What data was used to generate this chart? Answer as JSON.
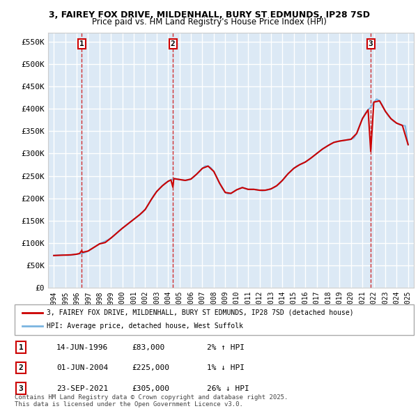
{
  "title_line1": "3, FAIREY FOX DRIVE, MILDENHALL, BURY ST EDMUNDS, IP28 7SD",
  "title_line2": "Price paid vs. HM Land Registry's House Price Index (HPI)",
  "ylabel": "",
  "background_color": "#dce9f5",
  "plot_bg_color": "#dce9f5",
  "grid_color": "#ffffff",
  "hpi_color": "#7ab4e0",
  "price_color": "#cc0000",
  "ytick_labels": [
    "£0",
    "£50K",
    "£100K",
    "£150K",
    "£200K",
    "£250K",
    "£300K",
    "£350K",
    "£400K",
    "£450K",
    "£500K",
    "£550K"
  ],
  "ytick_values": [
    0,
    50000,
    100000,
    150000,
    200000,
    250000,
    300000,
    350000,
    400000,
    450000,
    500000,
    550000
  ],
  "ylim": [
    0,
    570000
  ],
  "xlim_start": 1993.5,
  "xlim_end": 2025.5,
  "xtick_years": [
    1994,
    1995,
    1996,
    1997,
    1998,
    1999,
    2000,
    2001,
    2002,
    2003,
    2004,
    2005,
    2006,
    2007,
    2008,
    2009,
    2010,
    2011,
    2012,
    2013,
    2014,
    2015,
    2016,
    2017,
    2018,
    2019,
    2020,
    2021,
    2022,
    2023,
    2024,
    2025
  ],
  "sale_dates": [
    1996.45,
    2004.42,
    2021.73
  ],
  "sale_prices": [
    83000,
    225000,
    305000
  ],
  "sale_labels": [
    "1",
    "2",
    "3"
  ],
  "legend_line1": "3, FAIREY FOX DRIVE, MILDENHALL, BURY ST EDMUNDS, IP28 7SD (detached house)",
  "legend_line2": "HPI: Average price, detached house, West Suffolk",
  "table_rows": [
    {
      "num": "1",
      "date": "14-JUN-1996",
      "price": "£83,000",
      "hpi": "2% ↑ HPI"
    },
    {
      "num": "2",
      "date": "01-JUN-2004",
      "price": "£225,000",
      "hpi": "1% ↓ HPI"
    },
    {
      "num": "3",
      "date": "23-SEP-2021",
      "price": "£305,000",
      "hpi": "26% ↓ HPI"
    }
  ],
  "footnote": "Contains HM Land Registry data © Crown copyright and database right 2025.\nThis data is licensed under the Open Government Licence v3.0.",
  "hpi_data_x": [
    1994,
    1994.25,
    1994.5,
    1994.75,
    1995,
    1995.25,
    1995.5,
    1995.75,
    1996,
    1996.25,
    1996.5,
    1996.75,
    1997,
    1997.25,
    1997.5,
    1997.75,
    1998,
    1998.25,
    1998.5,
    1998.75,
    1999,
    1999.25,
    1999.5,
    1999.75,
    2000,
    2000.25,
    2000.5,
    2000.75,
    2001,
    2001.25,
    2001.5,
    2001.75,
    2002,
    2002.25,
    2002.5,
    2002.75,
    2003,
    2003.25,
    2003.5,
    2003.75,
    2004,
    2004.25,
    2004.5,
    2004.75,
    2005,
    2005.25,
    2005.5,
    2005.75,
    2006,
    2006.25,
    2006.5,
    2006.75,
    2007,
    2007.25,
    2007.5,
    2007.75,
    2008,
    2008.25,
    2008.5,
    2008.75,
    2009,
    2009.25,
    2009.5,
    2009.75,
    2010,
    2010.25,
    2010.5,
    2010.75,
    2011,
    2011.25,
    2011.5,
    2011.75,
    2012,
    2012.25,
    2012.5,
    2012.75,
    2013,
    2013.25,
    2013.5,
    2013.75,
    2014,
    2014.25,
    2014.5,
    2014.75,
    2015,
    2015.25,
    2015.5,
    2015.75,
    2016,
    2016.25,
    2016.5,
    2016.75,
    2017,
    2017.25,
    2017.5,
    2017.75,
    2018,
    2018.25,
    2018.5,
    2018.75,
    2019,
    2019.25,
    2019.5,
    2019.75,
    2020,
    2020.25,
    2020.5,
    2020.75,
    2021,
    2021.25,
    2021.5,
    2021.75,
    2022,
    2022.25,
    2022.5,
    2022.75,
    2023,
    2023.25,
    2023.5,
    2023.75,
    2024,
    2024.25,
    2024.5,
    2024.75,
    2025
  ],
  "hpi_data_y": [
    72000,
    72500,
    73000,
    73500,
    73000,
    72500,
    73000,
    74000,
    75000,
    76000,
    77000,
    79000,
    82000,
    86000,
    90000,
    94000,
    98000,
    101000,
    104000,
    107000,
    111000,
    116000,
    122000,
    128000,
    133000,
    138000,
    143000,
    148000,
    153000,
    158000,
    163000,
    168000,
    175000,
    185000,
    196000,
    207000,
    215000,
    222000,
    228000,
    234000,
    238000,
    241000,
    244000,
    243000,
    242000,
    241000,
    240000,
    241000,
    243000,
    248000,
    254000,
    260000,
    267000,
    272000,
    272000,
    268000,
    260000,
    248000,
    234000,
    222000,
    213000,
    210000,
    211000,
    215000,
    219000,
    222000,
    224000,
    222000,
    220000,
    220000,
    220000,
    219000,
    218000,
    217000,
    218000,
    219000,
    221000,
    224000,
    228000,
    233000,
    240000,
    248000,
    255000,
    261000,
    267000,
    272000,
    275000,
    278000,
    281000,
    285000,
    290000,
    295000,
    300000,
    305000,
    310000,
    314000,
    318000,
    322000,
    325000,
    327000,
    328000,
    329000,
    330000,
    331000,
    332000,
    335000,
    345000,
    362000,
    378000,
    390000,
    398000,
    404000,
    415000,
    422000,
    418000,
    408000,
    395000,
    385000,
    378000,
    372000,
    368000,
    365000,
    363000,
    362000,
    320000
  ],
  "price_line_x": [
    1994,
    1994.5,
    1995,
    1995.5,
    1996,
    1996.25,
    1996.45,
    1996.5,
    1997,
    1997.5,
    1998,
    1998.5,
    1999,
    1999.5,
    2000,
    2000.5,
    2001,
    2001.5,
    2002,
    2002.5,
    2003,
    2003.5,
    2004,
    2004.25,
    2004.42,
    2004.5,
    2005,
    2005.5,
    2006,
    2006.5,
    2007,
    2007.5,
    2008,
    2008.5,
    2009,
    2009.5,
    2010,
    2010.5,
    2011,
    2011.5,
    2012,
    2012.5,
    2013,
    2013.5,
    2014,
    2014.5,
    2015,
    2015.5,
    2016,
    2016.5,
    2017,
    2017.5,
    2018,
    2018.5,
    2019,
    2019.5,
    2020,
    2020.5,
    2021,
    2021.5,
    2021.73,
    2022,
    2022.5,
    2023,
    2023.5,
    2024,
    2024.5,
    2025
  ],
  "price_line_y": [
    72000,
    72500,
    73000,
    73500,
    75000,
    76500,
    83000,
    79000,
    82000,
    90000,
    98000,
    101000,
    111000,
    122000,
    133000,
    143000,
    153000,
    163000,
    175000,
    196000,
    215000,
    228000,
    238000,
    241000,
    225000,
    244000,
    242000,
    240000,
    243000,
    254000,
    267000,
    272000,
    260000,
    234000,
    213000,
    211000,
    219000,
    224000,
    220000,
    220000,
    218000,
    218000,
    221000,
    228000,
    240000,
    255000,
    267000,
    275000,
    281000,
    290000,
    300000,
    310000,
    318000,
    325000,
    328000,
    330000,
    332000,
    345000,
    378000,
    398000,
    305000,
    415000,
    418000,
    395000,
    378000,
    368000,
    363000,
    320000
  ]
}
